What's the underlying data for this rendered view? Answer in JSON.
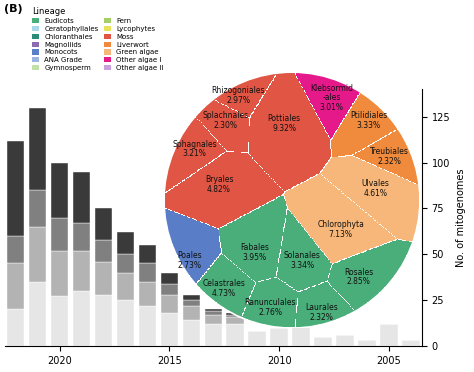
{
  "chart_data": {
    "type": "bar",
    "stacked": true,
    "panel_label": "(B)",
    "y_label": "No. of mitogenomes",
    "x": [
      2022,
      2021,
      2020,
      2019,
      2018,
      2017,
      2016,
      2015,
      2014,
      2013,
      2012,
      2011,
      2010,
      2009,
      2008,
      2007,
      2006,
      2005,
      2004
    ],
    "xlim": [
      2022.5,
      2003.5
    ],
    "xticks": [
      2020,
      2015,
      2010,
      2005
    ],
    "ylim": [
      0,
      140
    ],
    "yticks": [
      0,
      25,
      50,
      75,
      100,
      125
    ],
    "series": [
      {
        "color": "#e6e6e6",
        "values": [
          20,
          35,
          27,
          30,
          28,
          25,
          22,
          18,
          14,
          12,
          12,
          8,
          10,
          12,
          5,
          6,
          3,
          12,
          3
        ]
      },
      {
        "color": "#b3b3b3",
        "values": [
          25,
          30,
          25,
          22,
          18,
          15,
          13,
          10,
          8,
          5,
          4,
          0,
          0,
          0,
          0,
          0,
          0,
          0,
          0
        ]
      },
      {
        "color": "#808080",
        "values": [
          15,
          20,
          18,
          15,
          12,
          10,
          10,
          6,
          3,
          2,
          1,
          0,
          0,
          0,
          0,
          0,
          0,
          0,
          0
        ]
      },
      {
        "color": "#3a3a3a",
        "values": [
          52,
          45,
          30,
          28,
          17,
          12,
          10,
          6,
          3,
          1,
          1,
          0,
          0,
          0,
          0,
          0,
          0,
          0,
          0
        ]
      }
    ],
    "legend": "upper left",
    "legend_title": "Lineage",
    "lineages": [
      {
        "name": "Eudicots",
        "color": "#4aae7b"
      },
      {
        "name": "Ceratophyllales",
        "color": "#a8d8ea"
      },
      {
        "name": "Chloranthales",
        "color": "#2c8c7a"
      },
      {
        "name": "Magnoliids",
        "color": "#8c6bb1"
      },
      {
        "name": "Monocots",
        "color": "#5a7dc8"
      },
      {
        "name": "ANA Grade",
        "color": "#9db4e0"
      },
      {
        "name": "Gymnosperm",
        "color": "#c2e0a8"
      },
      {
        "name": "Fern",
        "color": "#a6cf6a"
      },
      {
        "name": "Lycophytes",
        "color": "#e8e25a"
      },
      {
        "name": "Moss",
        "color": "#e05543"
      },
      {
        "name": "Liverwort",
        "color": "#f08a3c"
      },
      {
        "name": "Green algae",
        "color": "#f7b77a"
      },
      {
        "name": "Other algae I",
        "color": "#e5198a"
      },
      {
        "name": "Other algae II",
        "color": "#c9a0dc"
      }
    ],
    "treemap": {
      "type": "treemap",
      "cells": [
        {
          "name": "Rhizogoniales",
          "value": 2.97,
          "value_label": "2.97%",
          "lineage": "Moss"
        },
        {
          "name": "Splachnales",
          "value": 2.3,
          "value_label": "2.30%",
          "lineage": "Moss"
        },
        {
          "name": "Sphagnales",
          "value": 3.21,
          "value_label": "3.21%",
          "lineage": "Moss"
        },
        {
          "name": "Pottiales",
          "value": 9.32,
          "value_label": "9.32%",
          "lineage": "Moss"
        },
        {
          "name": "Bryales",
          "value": 4.82,
          "value_label": "4.82%",
          "lineage": "Moss"
        },
        {
          "name": "Klebsormid\n-ales",
          "value": 3.01,
          "value_label": "3.01%",
          "lineage": "Other algae I"
        },
        {
          "name": "Ptilidiales",
          "value": 3.33,
          "value_label": "3.33%",
          "lineage": "Liverwort"
        },
        {
          "name": "Treubiales",
          "value": 2.32,
          "value_label": "2.32%",
          "lineage": "Liverwort"
        },
        {
          "name": "Ulvales",
          "value": 4.61,
          "value_label": "4.61%",
          "lineage": "Green algae"
        },
        {
          "name": "Chlorophyta",
          "value": 7.13,
          "value_label": "7.13%",
          "lineage": "Green algae"
        },
        {
          "name": "Poales",
          "value": 2.73,
          "value_label": "2.73%",
          "lineage": "Monocots"
        },
        {
          "name": "Fabales",
          "value": 3.95,
          "value_label": "3.95%",
          "lineage": "Eudicots"
        },
        {
          "name": "Solanales",
          "value": 3.34,
          "value_label": "3.34%",
          "lineage": "Eudicots"
        },
        {
          "name": "Rosales",
          "value": 2.85,
          "value_label": "2.85%",
          "lineage": "Eudicots"
        },
        {
          "name": "Celastrales",
          "value": 4.73,
          "value_label": "4.73%",
          "lineage": "Eudicots"
        },
        {
          "name": "Ranunculales",
          "value": 2.76,
          "value_label": "2.76%",
          "lineage": "Eudicots"
        },
        {
          "name": "Laurales",
          "value": 2.32,
          "value_label": "2.32%",
          "lineage": "Eudicots"
        }
      ]
    }
  }
}
